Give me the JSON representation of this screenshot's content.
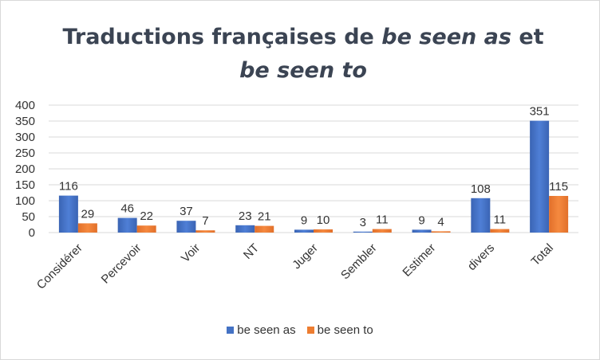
{
  "chart_data": {
    "type": "bar",
    "title_parts": [
      {
        "text": "Traductions françaises de ",
        "italic": false
      },
      {
        "text": "be seen as",
        "italic": true
      },
      {
        "text": " et ",
        "italic": false
      },
      {
        "text": "be seen to",
        "italic": true
      }
    ],
    "categories": [
      "Considérer",
      "Percevoir",
      "Voir",
      "NT",
      "Juger",
      "Sembler",
      "Estimer",
      "divers",
      "Total"
    ],
    "series": [
      {
        "name": "be seen as",
        "values": [
          116,
          46,
          37,
          23,
          9,
          3,
          9,
          108,
          351
        ],
        "color": "#4472c4"
      },
      {
        "name": "be seen to",
        "values": [
          29,
          22,
          7,
          21,
          10,
          11,
          4,
          11,
          115
        ],
        "color": "#ed7d31"
      }
    ],
    "ylim": [
      0,
      400
    ],
    "yticks": [
      0,
      50,
      100,
      150,
      200,
      250,
      300,
      350,
      400
    ],
    "grid": true,
    "legend_position": "bottom",
    "data_labels": true
  }
}
